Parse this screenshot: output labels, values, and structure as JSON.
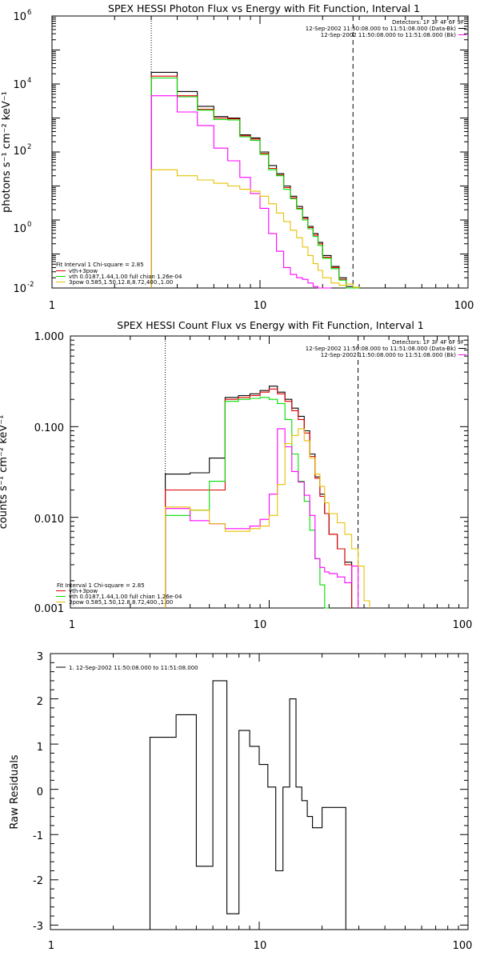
{
  "colors": {
    "sum": "#000000",
    "vth": "#e00000",
    "vth_component": "#00dd00",
    "pow_component": "#ff00ff",
    "bpow_component": "#e6c000",
    "background": "#ffffff"
  },
  "chart_data": [
    {
      "type": "line",
      "title": "SPEX HESSI Photon Flux vs Energy with Fit Function, Interval 1",
      "xlabel": "",
      "ylabel": "photons s⁻¹ cm⁻² keV⁻¹",
      "xscale": "log",
      "yscale": "log",
      "xlim": [
        1,
        100
      ],
      "ylim": [
        0.01,
        1000000
      ],
      "xticks": [
        "1",
        "10",
        "100"
      ],
      "yticks": [
        {
          "base": "10",
          "exp": "-2",
          "value": 0.01
        },
        {
          "base": "10",
          "exp": "0",
          "value": 1
        },
        {
          "base": "10",
          "exp": "2",
          "value": 100
        },
        {
          "base": "10",
          "exp": "4",
          "value": 10000
        },
        {
          "base": "10",
          "exp": "6",
          "value": 1000000
        }
      ],
      "header": [
        "Detectors: 1F 3F 4F 6F 9F",
        "12-Sep-2002 11:50:08.000 to 11:51:08.000 (Data-Bk)",
        "12-Sep-2002 11:50:08.000 to 11:51:08.000 (Bk)"
      ],
      "header_colors": [
        "#000000",
        "#000000",
        "#ff00ff"
      ],
      "legend": [
        "Fit Interval 1   Chi-square = 2.85",
        "vth+3pow",
        "vth 0.0187,1.44,1.00  full chian 1.26e-04",
        "3pow 0.585,1.50,12.8,8.72,400.,1.00"
      ],
      "legend_colors": [
        "#000000",
        "#e00000",
        "#00dd00",
        "#e6c000"
      ],
      "vlines": [
        {
          "x": 3,
          "style": "dotted"
        },
        {
          "x": 28,
          "style": "dashed"
        }
      ],
      "bin_edges": [
        3,
        4,
        5,
        6,
        7,
        8,
        9,
        10,
        11,
        12,
        13,
        14,
        15,
        16,
        17,
        18,
        19,
        20,
        22,
        24,
        26,
        28,
        30
      ],
      "series": [
        {
          "color": "#000000",
          "values": [
            22000,
            6000,
            2200,
            1100,
            1000,
            320,
            260,
            100,
            40,
            23,
            10,
            5,
            2.5,
            1.2,
            0.65,
            0.4,
            0.22,
            0.09,
            0.043,
            0.02,
            0.011,
            0.006
          ]
        },
        {
          "color": "#e00000",
          "values": [
            17000,
            4500,
            1800,
            1000,
            950,
            300,
            240,
            90,
            33,
            21,
            9,
            4.5,
            2.2,
            1.1,
            0.6,
            0.36,
            0.2,
            0.08,
            0.04,
            0.018,
            0.01,
            0.006
          ]
        },
        {
          "color": "#00dd00",
          "values": [
            15000,
            4200,
            1700,
            900,
            880,
            280,
            220,
            85,
            30,
            20,
            8,
            4.2,
            2.1,
            1.0,
            0.55,
            0.33,
            0.18,
            0.075,
            0.037,
            0.017,
            0.0095,
            0.0055
          ]
        },
        {
          "color": "#ff00ff",
          "values": [
            4500,
            1500,
            600,
            130,
            55,
            18,
            6,
            2.2,
            0.4,
            0.12,
            0.04,
            0.025,
            0.02,
            0.018,
            0.014,
            0.011,
            0.009,
            0.006
          ]
        },
        {
          "color": "#e6c000",
          "values": [
            30,
            20,
            15,
            12,
            10,
            8,
            7,
            5,
            3,
            1.6,
            0.9,
            0.5,
            0.3,
            0.16,
            0.09,
            0.052,
            0.033,
            0.02,
            0.014,
            0.012,
            0.013,
            0.0105
          ]
        }
      ]
    },
    {
      "type": "line",
      "title": "SPEX HESSI Count Flux vs Energy with Fit Function, Interval 1",
      "xlabel": "",
      "ylabel": "counts s⁻¹ cm⁻² keV⁻¹",
      "xscale": "log",
      "yscale": "log",
      "xlim": [
        1,
        100
      ],
      "ylim": [
        0.001,
        1.0
      ],
      "xticks": [
        "1",
        "10",
        "100"
      ],
      "yticks": [
        {
          "label": "1.000",
          "value": 1.0
        },
        {
          "label": "0.100",
          "value": 0.1
        },
        {
          "label": "0.010",
          "value": 0.01
        },
        {
          "label": "0.001",
          "value": 0.001
        }
      ],
      "header": [
        "Detectors: 1F 3F 4F 6F 9F",
        "12-Sep-2002 11:50:08.000 to 11:51:08.000 (Data-Bk)",
        "12-Sep-2002 11:50:08.000 to 11:51:08.000 (Bk)"
      ],
      "header_colors": [
        "#000000",
        "#000000",
        "#ff00ff"
      ],
      "legend": [
        "Fit Interval 1   Chi-square = 2.85",
        "vth+3pow",
        "vth 0.0187,1.44,1.00  full chian 1.26e-04",
        "3pow 0.585,1.50,12.8,8.72,400.,1.00"
      ],
      "legend_colors": [
        "#000000",
        "#e00000",
        "#00dd00",
        "#e6c000"
      ],
      "vlines": [
        {
          "x": 3,
          "style": "dotted"
        },
        {
          "x": 28,
          "style": "dashed"
        }
      ],
      "bin_edges": [
        3,
        4,
        5,
        6,
        7,
        8,
        9,
        10,
        11,
        12,
        13,
        14,
        15,
        16,
        17,
        18,
        19,
        20,
        22,
        24,
        26,
        28,
        30,
        32
      ],
      "series": [
        {
          "color": "#000000",
          "values": [
            0.03,
            0.031,
            0.045,
            0.21,
            0.22,
            0.23,
            0.25,
            0.28,
            0.24,
            0.2,
            0.16,
            0.13,
            0.09,
            0.05,
            0.028,
            0.018,
            0.011,
            0.0065,
            0.0045,
            0.0032,
            0.0008
          ]
        },
        {
          "color": "#e00000",
          "values": [
            0.02,
            0.02,
            0.02,
            0.2,
            0.21,
            0.22,
            0.24,
            0.26,
            0.23,
            0.19,
            0.15,
            0.12,
            0.085,
            0.047,
            0.027,
            0.017,
            0.011,
            0.0065,
            0.0045,
            0.003
          ]
        },
        {
          "color": "#00dd00",
          "values": [
            0.0105,
            0.012,
            0.025,
            0.19,
            0.2,
            0.205,
            0.21,
            0.2,
            0.18,
            0.12,
            0.05,
            0.025,
            0.015,
            0.0072,
            0.0035,
            0.0018,
            0.0008
          ]
        },
        {
          "color": "#ff00ff",
          "values": [
            0.0125,
            0.0092,
            0.0085,
            0.0075,
            0.0075,
            0.008,
            0.0095,
            0.018,
            0.095,
            0.06,
            0.032,
            0.0245,
            0.0175,
            0.0105,
            0.0035,
            0.0028,
            0.0025,
            0.0024,
            0.0022,
            0.0019,
            0.0029
          ]
        },
        {
          "color": "#e6c000",
          "values": [
            0.013,
            0.012,
            0.0085,
            0.007,
            0.007,
            0.0075,
            0.008,
            0.0105,
            0.023,
            0.065,
            0.08,
            0.095,
            0.07,
            0.045,
            0.03,
            0.022,
            0.0145,
            0.011,
            0.0087,
            0.0065,
            0.0045,
            0.0029,
            0.0012
          ]
        }
      ]
    },
    {
      "type": "line",
      "title": "",
      "xlabel": "",
      "ylabel": "Raw Residuals",
      "xscale": "log",
      "yscale": "linear",
      "xlim": [
        1,
        100
      ],
      "ylim": [
        -3.1,
        3.0
      ],
      "xticks": [
        "1",
        "10",
        "100"
      ],
      "yticks": [
        "-3",
        "-2",
        "-1",
        "0",
        "1",
        "2",
        "3"
      ],
      "legend": [
        "1. 12-Sep-2002 11:50:08.000 to 11:51:08.000"
      ],
      "legend_colors": [
        "#000000"
      ],
      "bin_edges": [
        3,
        4,
        5,
        6,
        7,
        8,
        9,
        10,
        11,
        12,
        13,
        14,
        15,
        16,
        17,
        18,
        19,
        20,
        22,
        24,
        26,
        28
      ],
      "series": [
        {
          "color": "#000000",
          "values": [
            1.15,
            1.65,
            -1.7,
            2.4,
            -2.75,
            1.3,
            0.95,
            0.55,
            0.05,
            -1.8,
            0.05,
            2.0,
            0.05,
            -0.25,
            -0.6,
            -0.85,
            -0.85,
            -0.4,
            -0.4,
            -0.4,
            -3.1
          ]
        }
      ]
    }
  ]
}
